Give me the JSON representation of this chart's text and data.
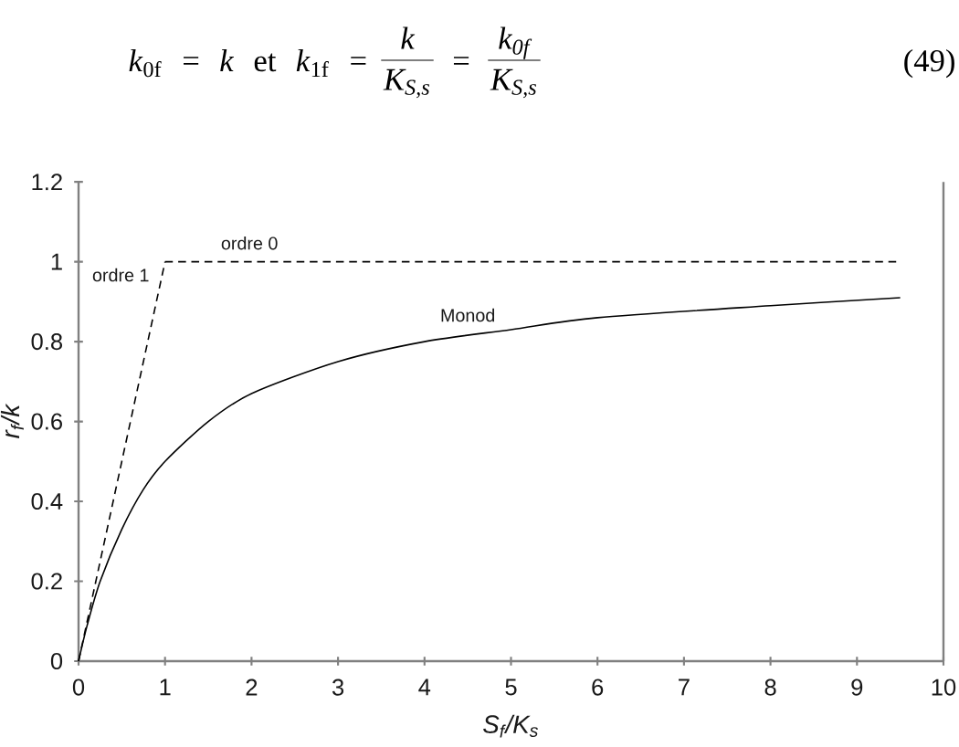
{
  "chart_data": {
    "type": "line",
    "xlabel": "S$_{f}$/K$_{s}$",
    "ylabel": "r$_{f}$/k",
    "xlim": [
      0,
      10
    ],
    "ylim": [
      0,
      1.2
    ],
    "xticks": [
      0,
      1,
      2,
      3,
      4,
      5,
      6,
      7,
      8,
      9,
      10
    ],
    "yticks": [
      0,
      0.2,
      0.4,
      0.6,
      0.8,
      1,
      1.2
    ],
    "series": [
      {
        "name": "ordre 1",
        "color": "#000000",
        "line_style": "dashed",
        "x": [
          0,
          1
        ],
        "values": [
          0,
          1
        ]
      },
      {
        "name": "ordre 0",
        "color": "#000000",
        "line_style": "dashed",
        "x": [
          1,
          9.5
        ],
        "values": [
          1,
          1
        ]
      },
      {
        "name": "Monod",
        "color": "#000000",
        "line_style": "solid",
        "x": [
          0,
          0.1,
          0.25,
          0.5,
          0.75,
          1,
          1.5,
          2,
          3,
          4,
          5,
          6,
          8,
          9.5
        ],
        "values": [
          0,
          0.09,
          0.2,
          0.33,
          0.43,
          0.5,
          0.6,
          0.67,
          0.75,
          0.8,
          0.83,
          0.86,
          0.89,
          0.91
        ]
      }
    ],
    "annotations": [
      "*k*$_{0f}$ = *k* et *k*$_{1f}$ =",
      "k",
      "K$_{S,s}$",
      "=",
      "k$_{0f}$",
      "K$_{S,s}$",
      "(49)"
    ]
  }
}
